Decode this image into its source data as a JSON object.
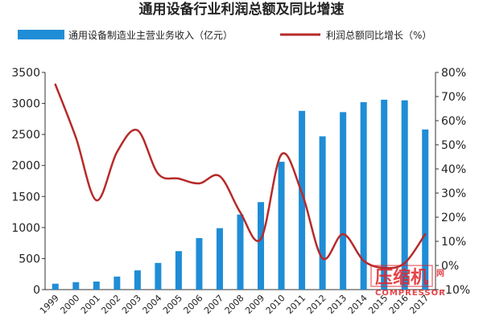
{
  "chart_data": {
    "type": "bar",
    "title": "通用设备行业利润总额及同比增速",
    "categories": [
      "1999",
      "2000",
      "2001",
      "2002",
      "2003",
      "2004",
      "2005",
      "2006",
      "2007",
      "2008",
      "2009",
      "2010",
      "2011",
      "2012",
      "2013",
      "2014",
      "2015",
      "2016",
      "2017"
    ],
    "series": [
      {
        "name": "通用设备制造业主营业务收入（亿元）",
        "type": "bar",
        "axis": "left",
        "color": "#1f8dd6",
        "values": [
          95,
          120,
          130,
          210,
          310,
          430,
          620,
          830,
          990,
          1210,
          1410,
          2060,
          2880,
          2470,
          2860,
          3020,
          3060,
          3050,
          2580
        ]
      },
      {
        "name": "利润总额同比增长（%）",
        "type": "line",
        "axis": "right",
        "color": "#b72a2a",
        "values": [
          75,
          53,
          27,
          47,
          56,
          38,
          36,
          34,
          37,
          22,
          11,
          46,
          30,
          3,
          13,
          2,
          -1,
          1,
          13
        ]
      }
    ],
    "y_left": {
      "min": 0,
      "max": 3500,
      "ticks": [
        0,
        500,
        1000,
        1500,
        2000,
        2500,
        3000,
        3500
      ]
    },
    "y_right": {
      "min": -10,
      "max": 80,
      "ticks": [
        "-10%",
        "0%",
        "10%",
        "20%",
        "30%",
        "40%",
        "50%",
        "60%",
        "70%",
        "80%"
      ]
    },
    "legend": {
      "position": "top",
      "items": [
        {
          "label": "通用设备制造业主营业务收入（亿元）",
          "kind": "bar",
          "color": "#1f8dd6"
        },
        {
          "label": "利润总额同比增长（%）",
          "kind": "line",
          "color": "#b72a2a"
        }
      ]
    },
    "grid": false
  },
  "watermark": {
    "main": "压缩机",
    "sub": "COMPRESSOR",
    "side": "网"
  }
}
